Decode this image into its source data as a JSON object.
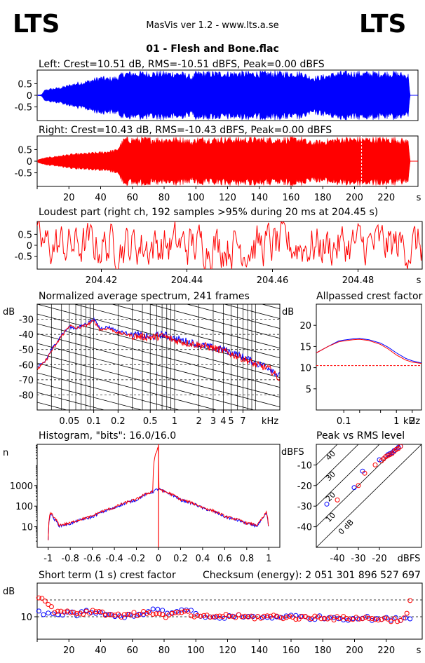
{
  "header": {
    "logo_left": "LTS",
    "logo_right": "LTS",
    "app_title": "MasVis ver 1.2 - www.lts.a.se",
    "file_title": "01 - Flesh and Bone.flac"
  },
  "colors": {
    "left": "#0000ff",
    "right": "#ff0000",
    "grid": "#000000",
    "background": "#ffffff"
  },
  "chart_data": [
    {
      "id": "left_waveform",
      "type": "area",
      "title": "Left: Crest=10.51 dB, RMS=-10.51 dBFS, Peak=0.00 dBFS",
      "ylim": [
        -1,
        1
      ],
      "y_ticks": [
        "0.5",
        "0",
        "-0.5"
      ],
      "x": [
        0,
        2,
        3,
        5,
        10,
        15,
        20,
        25,
        30,
        35,
        40,
        45,
        50,
        55,
        60,
        65,
        70,
        75,
        80,
        85,
        90,
        95,
        98,
        100,
        105,
        110,
        120,
        130,
        140,
        150,
        160,
        168,
        170,
        175,
        180,
        190,
        200,
        210,
        220,
        226,
        230,
        234,
        235
      ],
      "values": [
        0.02,
        0.02,
        0.05,
        0.25,
        0.3,
        0.35,
        0.45,
        0.55,
        0.6,
        0.7,
        0.8,
        0.75,
        0.8,
        1.0,
        1.0,
        1.0,
        1.0,
        1.0,
        1.0,
        1.0,
        1.0,
        0.9,
        0.8,
        1.0,
        1.0,
        1.0,
        1.0,
        1.0,
        1.0,
        1.0,
        1.0,
        1.0,
        0.85,
        0.8,
        0.85,
        1.0,
        1.0,
        1.0,
        1.0,
        1.0,
        0.95,
        0.9,
        0.0
      ],
      "color": "#0000ff"
    },
    {
      "id": "right_waveform",
      "type": "area",
      "title": "Right: Crest=10.43 dB, RMS=-10.43 dBFS, Peak=0.00 dBFS",
      "ylim": [
        -1,
        1
      ],
      "y_ticks": [
        "0.5",
        "0",
        "-0.5"
      ],
      "x_ticks": [
        "20",
        "40",
        "60",
        "80",
        "100",
        "120",
        "140",
        "160",
        "180",
        "200",
        "220"
      ],
      "x_tick_values": [
        20,
        40,
        60,
        80,
        100,
        120,
        140,
        160,
        180,
        200,
        220
      ],
      "x_unit": "s",
      "x": [
        0,
        2,
        5,
        10,
        20,
        30,
        40,
        45,
        50,
        55,
        60,
        70,
        80,
        90,
        95,
        98,
        100,
        110,
        120,
        130,
        140,
        150,
        160,
        168,
        170,
        175,
        180,
        190,
        200,
        210,
        220,
        226,
        230,
        234,
        235
      ],
      "values": [
        0.05,
        0.1,
        0.15,
        0.2,
        0.3,
        0.35,
        0.4,
        0.45,
        0.5,
        1.0,
        1.0,
        1.0,
        1.0,
        1.0,
        0.95,
        0.85,
        1.0,
        1.0,
        1.0,
        1.0,
        1.0,
        1.0,
        1.0,
        1.0,
        0.85,
        0.85,
        0.9,
        1.0,
        1.0,
        1.0,
        1.0,
        1.0,
        0.95,
        0.9,
        0.0
      ],
      "marker_x": 204.45,
      "color": "#ff0000"
    },
    {
      "id": "loudest_part",
      "type": "line",
      "title": "Loudest part (right ch, 192 samples >95% during 20 ms at 204.45 s)",
      "ylim": [
        -1,
        1
      ],
      "y_ticks": [
        "0.5",
        "0",
        "-0.5"
      ],
      "xlim": [
        204.405,
        204.495
      ],
      "x_ticks": [
        "204.42",
        "204.44",
        "204.46",
        "204.48"
      ],
      "x_tick_values": [
        204.42,
        204.44,
        204.46,
        204.48
      ],
      "x_unit": "s",
      "color": "#ff0000"
    },
    {
      "id": "spectrum",
      "type": "line",
      "title": "Normalized average spectrum, 241 frames",
      "ylabel": "dB",
      "x_unit": "kHz",
      "xlim": [
        0.02,
        20
      ],
      "ylim": [
        -90,
        -20
      ],
      "x_scale": "log",
      "y_ticks": [
        "-30",
        "-40",
        "-50",
        "-60",
        "-70",
        "-80"
      ],
      "y_tick_values": [
        -30,
        -40,
        -50,
        -60,
        -70,
        -80
      ],
      "x_ticks": [
        "0.05",
        "0.1",
        "0.2",
        "0.5",
        "1",
        "2",
        "3",
        "4",
        "5",
        "7"
      ],
      "x_tick_values": [
        0.05,
        0.1,
        0.2,
        0.5,
        1,
        2,
        3,
        4,
        5,
        7
      ],
      "series": [
        {
          "name": "left",
          "color": "#0000ff",
          "x": [
            0.02,
            0.025,
            0.03,
            0.04,
            0.05,
            0.06,
            0.08,
            0.1,
            0.12,
            0.15,
            0.2,
            0.3,
            0.5,
            0.7,
            1,
            1.5,
            2,
            3,
            4,
            5,
            7,
            10,
            15,
            20
          ],
          "y": [
            -62,
            -58,
            -50,
            -40,
            -35,
            -36,
            -33,
            -30,
            -36,
            -35,
            -38,
            -40,
            -42,
            -40,
            -43,
            -45,
            -47,
            -49,
            -50,
            -52,
            -55,
            -59,
            -62,
            -68
          ]
        },
        {
          "name": "right",
          "color": "#ff0000",
          "x": [
            0.02,
            0.025,
            0.03,
            0.04,
            0.05,
            0.06,
            0.08,
            0.1,
            0.12,
            0.15,
            0.2,
            0.3,
            0.5,
            0.7,
            1,
            1.5,
            2,
            3,
            4,
            5,
            7,
            10,
            15,
            20
          ],
          "y": [
            -63,
            -58,
            -51,
            -41,
            -34,
            -36,
            -34,
            -31,
            -37,
            -36,
            -39,
            -41,
            -42,
            -41,
            -44,
            -46,
            -47,
            -49,
            -51,
            -53,
            -56,
            -60,
            -63,
            -70
          ]
        }
      ]
    },
    {
      "id": "allpass_crest",
      "type": "line",
      "title": "Allpassed crest factor",
      "ylabel": "dB",
      "x_unit": "kHz",
      "x_scale": "log",
      "xlim": [
        0.03,
        3
      ],
      "ylim": [
        0,
        25
      ],
      "y_ticks": [
        "20",
        "15",
        "10",
        "5"
      ],
      "y_tick_values": [
        20,
        15,
        10,
        5
      ],
      "x_ticks": [
        "0.1",
        "1",
        "2"
      ],
      "x_tick_values": [
        0.1,
        1,
        2
      ],
      "reference_line": 10.5,
      "series": [
        {
          "name": "left",
          "color": "#0000ff",
          "x": [
            0.03,
            0.05,
            0.08,
            0.1,
            0.15,
            0.2,
            0.3,
            0.5,
            0.7,
            1,
            1.5,
            2,
            3
          ],
          "y": [
            13.5,
            15,
            16.3,
            16.5,
            16.8,
            16.9,
            16.6,
            15.8,
            14.8,
            13.5,
            12.2,
            11.6,
            11.1
          ]
        },
        {
          "name": "right",
          "color": "#ff0000",
          "x": [
            0.03,
            0.05,
            0.08,
            0.1,
            0.15,
            0.2,
            0.3,
            0.5,
            0.7,
            1,
            1.5,
            2,
            3
          ],
          "y": [
            13.5,
            15,
            16.1,
            16.3,
            16.6,
            16.7,
            16.4,
            15.5,
            14.4,
            13.0,
            11.8,
            11.3,
            11.0
          ]
        }
      ]
    },
    {
      "id": "histogram",
      "type": "line",
      "title": "Histogram, \"bits\": 16.0/16.0",
      "ylabel": "n",
      "y_scale": "log",
      "xlim": [
        -1.1,
        1.1
      ],
      "ylim": [
        1,
        100000
      ],
      "y_ticks": [
        "1000",
        "100",
        "10"
      ],
      "y_tick_values": [
        1000,
        100,
        10
      ],
      "x_ticks": [
        "-1",
        "-0.8",
        "-0.6",
        "-0.4",
        "-0.2",
        "0",
        "0.2",
        "0.4",
        "0.6",
        "0.8",
        "1"
      ],
      "x_tick_values": [
        -1,
        -0.8,
        -0.6,
        -0.4,
        -0.2,
        0,
        0.2,
        0.4,
        0.6,
        0.8,
        1
      ],
      "series": [
        {
          "name": "left",
          "color": "#0000ff",
          "x": [
            -1.0,
            -0.98,
            -0.95,
            -0.9,
            -0.8,
            -0.6,
            -0.4,
            -0.2,
            -0.05,
            0,
            0.05,
            0.2,
            0.4,
            0.6,
            0.8,
            0.9,
            0.95,
            0.98,
            1.0
          ],
          "y": [
            2,
            45,
            25,
            11,
            14,
            30,
            80,
            200,
            500,
            700,
            500,
            200,
            80,
            30,
            14,
            11,
            25,
            45,
            2
          ]
        },
        {
          "name": "right",
          "color": "#ff0000",
          "x": [
            -1.0,
            -0.98,
            -0.95,
            -0.9,
            -0.8,
            -0.6,
            -0.4,
            -0.2,
            -0.05,
            0,
            0.001,
            0.002,
            0.05,
            0.2,
            0.4,
            0.6,
            0.8,
            0.9,
            0.95,
            0.98,
            1.0
          ],
          "y": [
            2,
            50,
            28,
            12,
            15,
            32,
            85,
            210,
            520,
            70000,
            720,
            720,
            520,
            210,
            85,
            32,
            15,
            12,
            28,
            50,
            2
          ]
        }
      ]
    },
    {
      "id": "peak_vs_rms",
      "type": "scatter",
      "title": "Peak vs RMS level",
      "ylabel": "dBFS",
      "x_unit": "dBFS",
      "xlim": [
        -50,
        0
      ],
      "ylim": [
        -50,
        0
      ],
      "y_ticks": [
        "-10",
        "-20",
        "-30",
        "-40"
      ],
      "y_tick_values": [
        -10,
        -20,
        -30,
        -40
      ],
      "x_ticks": [
        "-40",
        "-30",
        "-20"
      ],
      "x_tick_values": [
        -40,
        -30,
        -20
      ],
      "diagonal_labels": [
        "40",
        "30",
        "20",
        "10",
        "0 dB"
      ],
      "diagonal_offsets": [
        40,
        30,
        20,
        10,
        0
      ],
      "series": [
        {
          "name": "left",
          "color": "#0000ff",
          "x": [
            -45,
            -32,
            -28,
            -20,
            -18,
            -17,
            -16,
            -15,
            -14,
            -13,
            -12,
            -11,
            -10
          ],
          "y": [
            -29,
            -21,
            -13,
            -7.5,
            -7,
            -6,
            -5,
            -4.5,
            -4,
            -3,
            -2.5,
            -1.5,
            -1
          ]
        },
        {
          "name": "right",
          "color": "#ff0000",
          "x": [
            -40,
            -30,
            -27,
            -22,
            -19,
            -18,
            -17,
            -16,
            -15,
            -14,
            -13,
            -12,
            -11,
            -10
          ],
          "y": [
            -27,
            -20,
            -14,
            -10,
            -8,
            -7,
            -6,
            -5.5,
            -5,
            -4.5,
            -3.5,
            -2.5,
            -2,
            -1
          ]
        }
      ]
    },
    {
      "id": "short_term_crest",
      "type": "scatter",
      "title": "Short term (1 s) crest factor",
      "annotation": "Checksum (energy):  2 051 301 896 527 697",
      "ylabel": "dB",
      "xlim": [
        0,
        240
      ],
      "ylim": [
        6,
        16
      ],
      "y_ticks": [
        "10"
      ],
      "y_tick_values": [
        10
      ],
      "ref_lines": [
        10,
        13
      ],
      "x_ticks": [
        "20",
        "40",
        "60",
        "80",
        "100",
        "120",
        "140",
        "160",
        "180",
        "200",
        "220"
      ],
      "x_tick_values": [
        20,
        40,
        60,
        80,
        100,
        120,
        140,
        160,
        180,
        200,
        220
      ],
      "x_unit": "s",
      "series": [
        {
          "name": "left",
          "color": "#0000ff",
          "x": [
            2,
            5,
            8,
            12,
            18,
            25,
            32,
            40,
            50,
            60,
            70,
            76,
            85,
            92,
            98,
            105,
            115,
            125,
            135,
            145,
            155,
            165,
            175,
            185,
            195,
            205,
            215,
            225,
            232
          ],
          "y": [
            11,
            10.5,
            10.8,
            10.2,
            10.6,
            10.4,
            11,
            10.5,
            10,
            10.3,
            10.8,
            11.3,
            10.6,
            11.2,
            10.8,
            9.8,
            9.9,
            10.1,
            10,
            9.9,
            10.1,
            10,
            9.8,
            9.9,
            9.7,
            9.8,
            9.6,
            9.5,
            9.8
          ]
        },
        {
          "name": "right",
          "color": "#ff0000",
          "x": [
            1,
            3,
            5,
            7,
            10,
            14,
            20,
            26,
            33,
            38,
            45,
            52,
            58,
            64,
            70,
            75,
            80,
            86,
            93,
            100,
            108,
            118,
            128,
            138,
            148,
            158,
            168,
            178,
            188,
            198,
            208,
            218,
            226,
            232,
            235
          ],
          "y": [
            13.4,
            13.2,
            13.1,
            12.5,
            11.2,
            10.8,
            11,
            10.6,
            10.9,
            11.1,
            10.4,
            10.2,
            10.6,
            10.3,
            10.9,
            10.6,
            10.1,
            10.4,
            10.9,
            9.9,
            10,
            10.2,
            10,
            9.9,
            10.1,
            9.9,
            9.8,
            10,
            9.7,
            9.8,
            9.7,
            9.6,
            9.4,
            9.6,
            12.6
          ]
        }
      ]
    }
  ]
}
